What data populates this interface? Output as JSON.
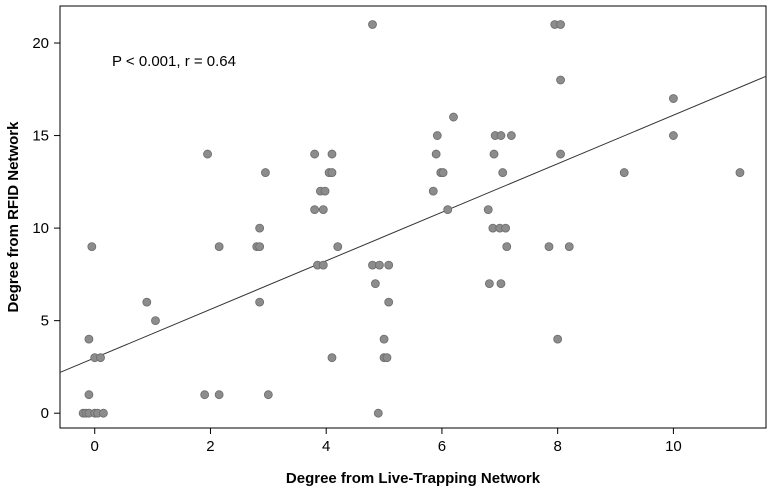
{
  "chart_data": {
    "type": "scatter",
    "title": "",
    "xlabel": "Degree from Live-Trapping Network",
    "ylabel": "Degree from RFID Network",
    "annotation": "P < 0.001, r = 0.64",
    "xlim": [
      -0.6,
      11.6
    ],
    "ylim": [
      -0.8,
      22
    ],
    "xticks": [
      0,
      2,
      4,
      6,
      8,
      10
    ],
    "yticks": [
      0,
      5,
      10,
      15,
      20
    ],
    "grid": false,
    "point_color": "#8c8c8c",
    "point_edge_color": "#6b6b6b",
    "line_color": "#333333",
    "fit_line": {
      "x": [
        -0.6,
        11.6
      ],
      "y": [
        2.2,
        18.2
      ]
    },
    "points": [
      {
        "x": -0.2,
        "y": 0
      },
      {
        "x": -0.15,
        "y": 0
      },
      {
        "x": -0.1,
        "y": 0
      },
      {
        "x": 0.0,
        "y": 0
      },
      {
        "x": 0.05,
        "y": 0
      },
      {
        "x": 0.15,
        "y": 0
      },
      {
        "x": -0.1,
        "y": 1
      },
      {
        "x": -0.1,
        "y": 4
      },
      {
        "x": -0.05,
        "y": 9
      },
      {
        "x": 0.0,
        "y": 3
      },
      {
        "x": 0.1,
        "y": 3
      },
      {
        "x": 0.9,
        "y": 6
      },
      {
        "x": 1.05,
        "y": 5
      },
      {
        "x": 1.9,
        "y": 1
      },
      {
        "x": 2.15,
        "y": 1
      },
      {
        "x": 1.95,
        "y": 14
      },
      {
        "x": 2.15,
        "y": 9
      },
      {
        "x": 2.8,
        "y": 9
      },
      {
        "x": 2.85,
        "y": 9
      },
      {
        "x": 2.85,
        "y": 10
      },
      {
        "x": 2.85,
        "y": 6
      },
      {
        "x": 2.95,
        "y": 13
      },
      {
        "x": 3.0,
        "y": 1
      },
      {
        "x": 3.8,
        "y": 14
      },
      {
        "x": 3.8,
        "y": 11
      },
      {
        "x": 3.85,
        "y": 8
      },
      {
        "x": 3.95,
        "y": 8
      },
      {
        "x": 3.9,
        "y": 12
      },
      {
        "x": 3.95,
        "y": 11
      },
      {
        "x": 3.98,
        "y": 12
      },
      {
        "x": 4.05,
        "y": 13
      },
      {
        "x": 4.1,
        "y": 13
      },
      {
        "x": 4.1,
        "y": 14
      },
      {
        "x": 4.1,
        "y": 3
      },
      {
        "x": 4.2,
        "y": 9
      },
      {
        "x": 4.8,
        "y": 21
      },
      {
        "x": 4.8,
        "y": 8
      },
      {
        "x": 4.85,
        "y": 7
      },
      {
        "x": 4.92,
        "y": 8
      },
      {
        "x": 4.9,
        "y": 0
      },
      {
        "x": 5.0,
        "y": 4
      },
      {
        "x": 5.0,
        "y": 3
      },
      {
        "x": 5.05,
        "y": 3
      },
      {
        "x": 5.08,
        "y": 8
      },
      {
        "x": 5.08,
        "y": 6
      },
      {
        "x": 5.85,
        "y": 12
      },
      {
        "x": 5.9,
        "y": 14
      },
      {
        "x": 5.92,
        "y": 15
      },
      {
        "x": 5.98,
        "y": 13
      },
      {
        "x": 6.02,
        "y": 13
      },
      {
        "x": 6.1,
        "y": 11
      },
      {
        "x": 6.2,
        "y": 16
      },
      {
        "x": 6.8,
        "y": 11
      },
      {
        "x": 6.82,
        "y": 7
      },
      {
        "x": 6.88,
        "y": 10
      },
      {
        "x": 6.9,
        "y": 14
      },
      {
        "x": 6.92,
        "y": 15
      },
      {
        "x": 7.0,
        "y": 10
      },
      {
        "x": 7.02,
        "y": 15
      },
      {
        "x": 7.02,
        "y": 7
      },
      {
        "x": 7.05,
        "y": 13
      },
      {
        "x": 7.1,
        "y": 10
      },
      {
        "x": 7.12,
        "y": 9
      },
      {
        "x": 7.2,
        "y": 15
      },
      {
        "x": 7.85,
        "y": 9
      },
      {
        "x": 7.95,
        "y": 21
      },
      {
        "x": 8.0,
        "y": 4
      },
      {
        "x": 8.05,
        "y": 21
      },
      {
        "x": 8.05,
        "y": 18
      },
      {
        "x": 8.05,
        "y": 14
      },
      {
        "x": 8.2,
        "y": 9
      },
      {
        "x": 9.15,
        "y": 13
      },
      {
        "x": 10.0,
        "y": 17
      },
      {
        "x": 10.0,
        "y": 15
      },
      {
        "x": 11.15,
        "y": 13
      }
    ]
  }
}
